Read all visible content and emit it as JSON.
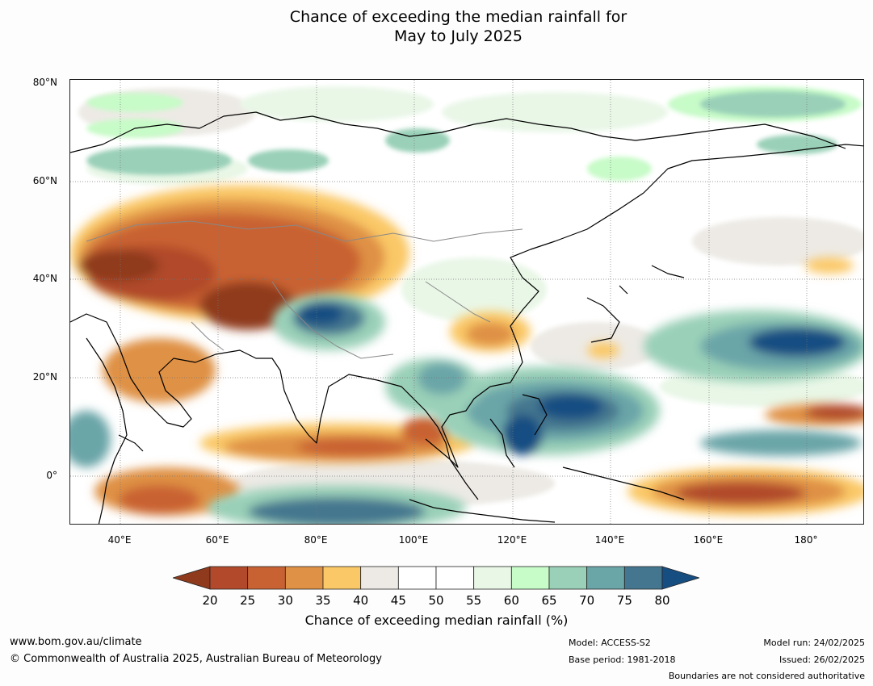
{
  "title_line1": "Chance of exceeding the median rainfall for",
  "title_line2": "May to July 2025",
  "map": {
    "lat_labels": [
      "80°N",
      "60°N",
      "40°N",
      "20°N",
      "0°"
    ],
    "lon_labels": [
      "40°E",
      "60°E",
      "80°E",
      "100°E",
      "120°E",
      "140°E",
      "160°E",
      "180°"
    ]
  },
  "colorbar": {
    "title": "Chance of exceeding median rainfall (%)",
    "ticks": [
      "20",
      "25",
      "30",
      "35",
      "40",
      "45",
      "50",
      "55",
      "60",
      "65",
      "70",
      "75",
      "80"
    ],
    "colors": [
      "#8f3a1c",
      "#b1492a",
      "#c96233",
      "#df9145",
      "#fac866",
      "#edeae5",
      "#ffffff",
      "#ffffff",
      "#e9f7e7",
      "#c7fbc8",
      "#9ad0b8",
      "#6aa5a8",
      "#44778f",
      "#174e82"
    ]
  },
  "footer": {
    "website": "www.bom.gov.au/climate",
    "copyright": "© Commonwealth of Australia 2025, Australian Bureau of Meteorology",
    "model": "Model: ACCESS-S2",
    "base_period": "Base period: 1981-2018",
    "model_run": "Model run: 24/02/2025",
    "issued": "Issued: 26/02/2025",
    "disclaimer": "Boundaries are not considered authoritative"
  }
}
